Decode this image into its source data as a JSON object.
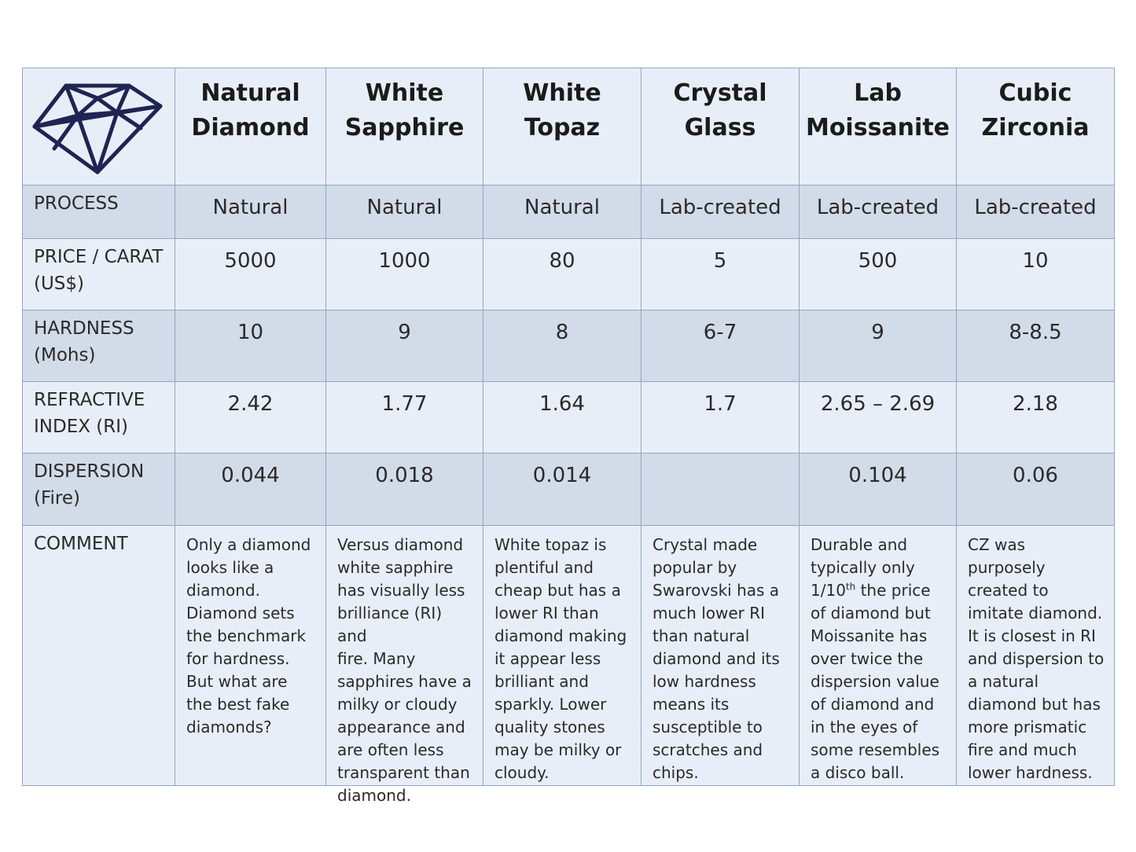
{
  "columns": [
    {
      "line1": "Natural",
      "line2": "Diamond"
    },
    {
      "line1": "White",
      "line2": "Sapphire"
    },
    {
      "line1": "White",
      "line2": "Topaz"
    },
    {
      "line1": "Crystal",
      "line2": "Glass"
    },
    {
      "line1": "Lab",
      "line2": "Moissanite"
    },
    {
      "line1": "Cubic",
      "line2": "Zirconia"
    }
  ],
  "rows": {
    "process": {
      "label1": "PROCESS",
      "label2": "",
      "values": [
        "Natural",
        "Natural",
        "Natural",
        "Lab-created",
        "Lab-created",
        "Lab-created"
      ]
    },
    "price": {
      "label1": "PRICE / CARAT",
      "label2": "(US$)",
      "values": [
        "5000",
        "1000",
        "80",
        "5",
        "500",
        "10"
      ]
    },
    "hardness": {
      "label1": "HARDNESS",
      "label2": "(Mohs)",
      "values": [
        "10",
        "9",
        "8",
        "6-7",
        "9",
        "8-8.5"
      ]
    },
    "refractive": {
      "label1": "REFRACTIVE",
      "label2": "INDEX (RI)",
      "values": [
        "2.42",
        "1.77",
        "1.64",
        "1.7",
        "2.65 – 2.69",
        "2.18"
      ]
    },
    "dispersion": {
      "label1": "DISPERSION",
      "label2": "(Fire)",
      "values": [
        "0.044",
        "0.018",
        "0.014",
        "",
        "0.104",
        "0.06"
      ]
    },
    "comment": {
      "label1": "COMMENT",
      "diamond": [
        "Only a diamond",
        "looks like a",
        "diamond.",
        "Diamond sets",
        "the benchmark",
        "for hardness.",
        "But what are",
        "the best fake",
        "diamonds?"
      ],
      "sapphire": [
        "Versus diamond",
        "white sapphire",
        "has visually less",
        "brilliance (RI) and",
        "fire.  Many",
        "sapphires have a",
        "milky or cloudy",
        "appearance and",
        "are often less",
        "transparent than",
        "diamond."
      ],
      "topaz": [
        "White topaz is",
        "plentiful and",
        "cheap but has a",
        "lower RI than",
        "diamond making",
        "it appear less",
        "brilliant and",
        "sparkly.  Lower",
        "quality stones",
        "may be milky or",
        "cloudy."
      ],
      "glass": [
        "Crystal made",
        "popular by",
        "Swarovski has a",
        "much lower RI",
        "than natural",
        "diamond and its",
        "low hardness",
        "means its",
        "susceptible to",
        "scratches and",
        "chips."
      ],
      "moissanite": {
        "line1": "Durable and",
        "line2": "typically only",
        "line3_pre": "1/10",
        "line3_sup": "th",
        "line3_post": " the price",
        "rest": [
          "of diamond but",
          "Moissanite has",
          "over twice the",
          "dispersion value",
          "of diamond and",
          "in the eyes of",
          "some resembles",
          "a disco ball."
        ]
      },
      "zirconia": [
        "CZ was purposely",
        "created to",
        "imitate diamond.",
        "It is closest in RI",
        "and dispersion to",
        "a natural",
        "diamond but has",
        "more prismatic",
        "fire and much",
        "lower hardness."
      ]
    }
  },
  "icon": {
    "name": "diamond-icon",
    "color": "#1f2452"
  },
  "colors": {
    "light": "#e8eef7",
    "dark": "#d2dbe8",
    "border": "#8fa6c6"
  }
}
